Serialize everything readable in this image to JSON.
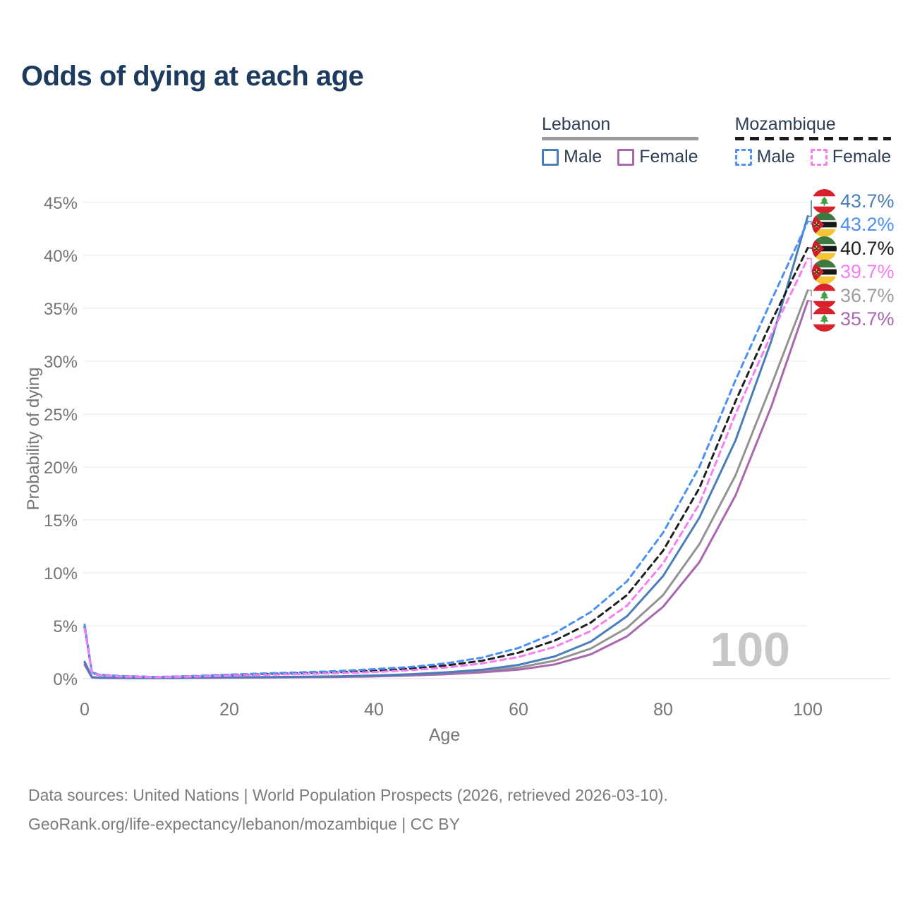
{
  "title": "Odds of dying at each age",
  "watermark": "100",
  "legend": {
    "groups": [
      {
        "name": "Lebanon",
        "line_style": "solid",
        "line_color": "#9b9b9b",
        "items": [
          {
            "label": "Male",
            "color": "#4a7ebb",
            "dashed": false
          },
          {
            "label": "Female",
            "color": "#a768ae",
            "dashed": false
          }
        ]
      },
      {
        "name": "Mozambique",
        "line_style": "dashed",
        "line_color": "#1c1c1c",
        "items": [
          {
            "label": "Male",
            "color": "#4b90f5",
            "dashed": true
          },
          {
            "label": "Female",
            "color": "#f77df2",
            "dashed": true
          }
        ]
      }
    ]
  },
  "axes": {
    "y_title": "Probability of dying",
    "x_title": "Age",
    "y_ticks": [
      "0%",
      "5%",
      "10%",
      "15%",
      "20%",
      "25%",
      "30%",
      "35%",
      "40%",
      "45%"
    ],
    "x_ticks": [
      "0",
      "20",
      "40",
      "60",
      "80",
      "100"
    ]
  },
  "end_labels": [
    {
      "value": "43.7%",
      "flag": "lebanon",
      "series_id": "lebanon-male",
      "color": "#4a7ebb"
    },
    {
      "value": "43.2%",
      "flag": "mozambique",
      "series_id": "mozambique-male",
      "color": "#4b90f5"
    },
    {
      "value": "40.7%",
      "flag": "mozambique",
      "series_id": "mozambique-both",
      "color": "#1f1f1f"
    },
    {
      "value": "39.7%",
      "flag": "mozambique",
      "series_id": "mozambique-female",
      "color": "#f77df2"
    },
    {
      "value": "36.7%",
      "flag": "lebanon",
      "series_id": "lebanon-both",
      "color": "#9e9e9e"
    },
    {
      "value": "35.7%",
      "flag": "lebanon",
      "series_id": "lebanon-female",
      "color": "#a768ae"
    }
  ],
  "footer": {
    "line1": "Data sources: United Nations | World Population Prospects (2026, retrieved 2026-03-10).",
    "line2": "GeoRank.org/life-expectancy/lebanon/mozambique | CC BY"
  },
  "chart_data": {
    "type": "line",
    "title": "Odds of dying at each age",
    "xlabel": "Age",
    "ylabel": "Probability of dying",
    "xlim": [
      0,
      100
    ],
    "ylim": [
      0,
      47
    ],
    "grid": "horizontal",
    "legend_position": "top-right",
    "x": [
      0,
      1,
      2,
      5,
      10,
      15,
      20,
      25,
      30,
      35,
      40,
      45,
      50,
      55,
      60,
      65,
      70,
      75,
      80,
      85,
      90,
      95,
      100
    ],
    "series": [
      {
        "id": "lebanon-both",
        "name": "Lebanon",
        "color": "#939393",
        "dashed": false,
        "values": [
          1.45,
          0.13,
          0.08,
          0.07,
          0.06,
          0.09,
          0.11,
          0.13,
          0.16,
          0.19,
          0.26,
          0.36,
          0.5,
          0.72,
          1.05,
          1.7,
          2.85,
          4.8,
          7.9,
          12.7,
          19.2,
          27.8,
          36.7
        ]
      },
      {
        "id": "lebanon-female",
        "name": "Lebanon Female",
        "color": "#a768ae",
        "dashed": false,
        "values": [
          1.3,
          0.11,
          0.07,
          0.05,
          0.05,
          0.07,
          0.09,
          0.11,
          0.13,
          0.16,
          0.21,
          0.3,
          0.42,
          0.6,
          0.85,
          1.35,
          2.3,
          4.0,
          6.8,
          11.0,
          17.3,
          25.8,
          35.7
        ]
      },
      {
        "id": "lebanon-male",
        "name": "Lebanon Male",
        "color": "#4a7ebb",
        "dashed": false,
        "values": [
          1.6,
          0.15,
          0.1,
          0.08,
          0.07,
          0.1,
          0.13,
          0.15,
          0.18,
          0.22,
          0.3,
          0.42,
          0.6,
          0.85,
          1.3,
          2.1,
          3.5,
          5.9,
          9.7,
          15.2,
          22.5,
          32.0,
          43.7
        ]
      },
      {
        "id": "mozambique-both",
        "name": "Mozambique",
        "color": "#1f1f1f",
        "dashed": true,
        "values": [
          4.9,
          0.55,
          0.35,
          0.22,
          0.15,
          0.22,
          0.33,
          0.43,
          0.52,
          0.62,
          0.75,
          0.95,
          1.25,
          1.7,
          2.45,
          3.6,
          5.3,
          7.9,
          12.1,
          18.0,
          26.2,
          33.8,
          40.7
        ]
      },
      {
        "id": "mozambique-male",
        "name": "Mozambique Male",
        "color": "#4b90f5",
        "dashed": true,
        "values": [
          5.1,
          0.6,
          0.38,
          0.25,
          0.17,
          0.25,
          0.38,
          0.5,
          0.6,
          0.72,
          0.9,
          1.1,
          1.45,
          2.0,
          2.9,
          4.3,
          6.3,
          9.2,
          13.8,
          20.0,
          28.2,
          35.8,
          43.2
        ]
      },
      {
        "id": "mozambique-female",
        "name": "Mozambique Female",
        "color": "#f77df2",
        "dashed": true,
        "values": [
          4.7,
          0.5,
          0.32,
          0.2,
          0.13,
          0.19,
          0.28,
          0.36,
          0.44,
          0.52,
          0.62,
          0.8,
          1.05,
          1.45,
          2.05,
          3.0,
          4.5,
          6.9,
          10.9,
          16.5,
          25.0,
          32.6,
          39.7
        ]
      }
    ]
  }
}
